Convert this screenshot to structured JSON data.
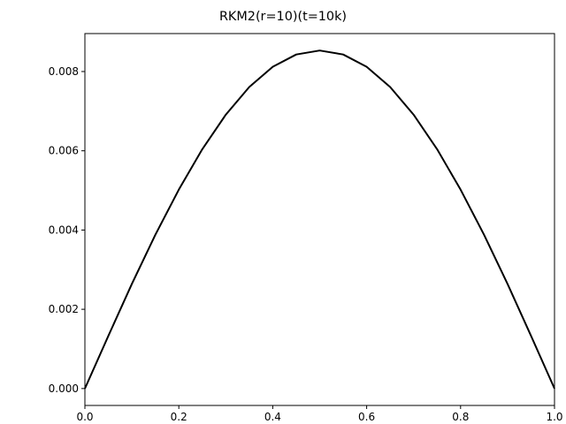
{
  "chart_data": {
    "type": "line",
    "title": "RKM2(r=10)(t=10k)",
    "xlabel": "",
    "ylabel": "",
    "xlim": [
      0.0,
      1.0
    ],
    "ylim": [
      -0.000427,
      0.008958
    ],
    "grid": false,
    "x_ticks": [
      "0.0",
      "0.2",
      "0.4",
      "0.6",
      "0.8",
      "1.0"
    ],
    "y_ticks": [
      "0.000",
      "0.002",
      "0.004",
      "0.006",
      "0.008"
    ],
    "series": [
      {
        "color": "#000000",
        "x": [
          0.0,
          0.05,
          0.1,
          0.15,
          0.2,
          0.25,
          0.3,
          0.35,
          0.4,
          0.45,
          0.5,
          0.55,
          0.6,
          0.65,
          0.7,
          0.75,
          0.8,
          0.85,
          0.9,
          0.95,
          1.0
        ],
        "y": [
          0.0,
          0.00133,
          0.00264,
          0.00388,
          0.00502,
          0.00604,
          0.00691,
          0.00761,
          0.00812,
          0.00843,
          0.00853,
          0.00843,
          0.00812,
          0.00761,
          0.00691,
          0.00604,
          0.00502,
          0.00388,
          0.00264,
          0.00133,
          0.0
        ]
      }
    ]
  }
}
